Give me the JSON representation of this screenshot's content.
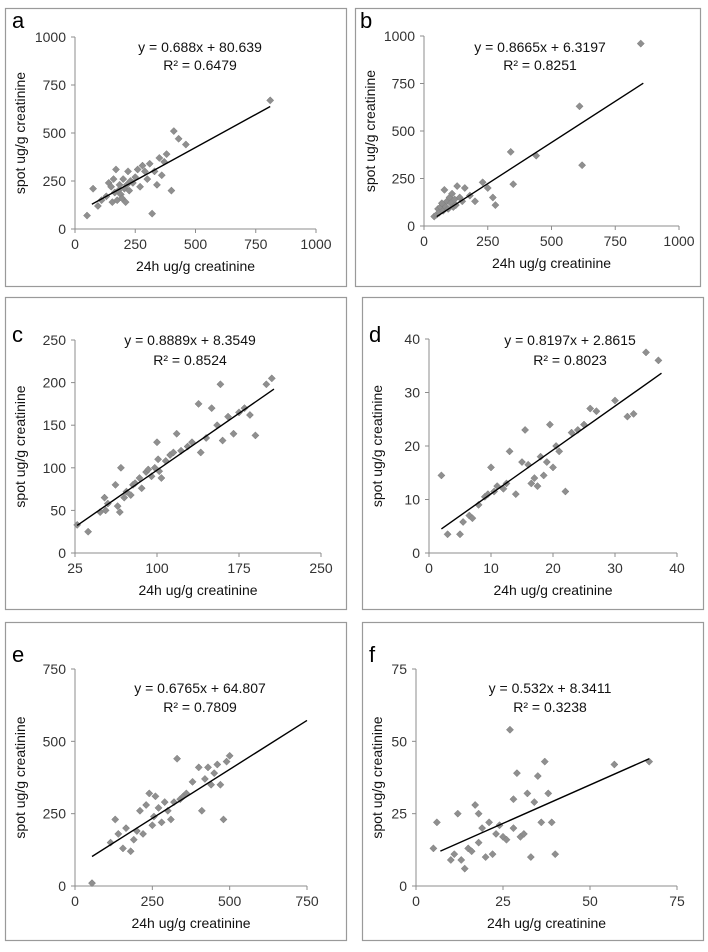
{
  "chart_data": [
    {
      "type": "scatter",
      "panel_label": "a",
      "xlabel": "24h ug/g creatinine",
      "ylabel": "spot ug/g creatinine",
      "xlim": [
        0,
        1000
      ],
      "ylim": [
        0,
        1000
      ],
      "xticks": [
        0,
        250,
        500,
        750,
        1000
      ],
      "yticks": [
        0,
        250,
        500,
        750,
        1000
      ],
      "equation": "y = 0.688x + 80.639",
      "r2": "R² = 0.6479",
      "trendline": {
        "slope": 0.688,
        "intercept": 80.639,
        "x_range": [
          70,
          810
        ]
      },
      "x": [
        50,
        75,
        95,
        110,
        130,
        140,
        150,
        155,
        160,
        165,
        170,
        175,
        180,
        185,
        190,
        195,
        200,
        205,
        210,
        215,
        220,
        225,
        230,
        240,
        250,
        260,
        270,
        280,
        290,
        300,
        310,
        320,
        330,
        340,
        350,
        360,
        370,
        380,
        400,
        410,
        430,
        460,
        810
      ],
      "y": [
        70,
        210,
        120,
        150,
        170,
        240,
        220,
        140,
        260,
        190,
        310,
        150,
        200,
        230,
        180,
        160,
        260,
        210,
        140,
        230,
        300,
        200,
        250,
        240,
        270,
        310,
        220,
        330,
        300,
        260,
        340,
        80,
        300,
        230,
        370,
        280,
        350,
        390,
        200,
        510,
        470,
        440,
        670
      ]
    },
    {
      "type": "scatter",
      "panel_label": "b",
      "xlabel": "24h ug/g creatinine",
      "ylabel": "spot ug/g creatinine",
      "xlim": [
        0,
        1000
      ],
      "ylim": [
        0,
        1000
      ],
      "xticks": [
        0,
        250,
        500,
        750,
        1000
      ],
      "yticks": [
        0,
        250,
        500,
        750,
        1000
      ],
      "equation": "y = 0.8665x + 6.3197",
      "r2": "R² = 0.8251",
      "trendline": {
        "slope": 0.8665,
        "intercept": 6.3197,
        "x_range": [
          50,
          860
        ]
      },
      "x": [
        40,
        50,
        55,
        60,
        65,
        70,
        75,
        80,
        85,
        90,
        95,
        100,
        105,
        110,
        115,
        120,
        125,
        130,
        140,
        150,
        160,
        180,
        200,
        230,
        250,
        270,
        280,
        340,
        350,
        440,
        610,
        620,
        850
      ],
      "y": [
        50,
        60,
        90,
        70,
        100,
        120,
        80,
        190,
        100,
        130,
        90,
        150,
        120,
        170,
        100,
        140,
        110,
        210,
        150,
        130,
        200,
        160,
        130,
        230,
        200,
        150,
        110,
        390,
        220,
        370,
        630,
        320,
        960
      ]
    },
    {
      "type": "scatter",
      "panel_label": "c",
      "xlabel": "24h ug/g creatinine",
      "ylabel": "spot ug/g creatinine",
      "xlim": [
        25,
        250
      ],
      "ylim": [
        0,
        250
      ],
      "xticks": [
        25,
        100,
        175,
        250
      ],
      "yticks": [
        0,
        50,
        100,
        150,
        200,
        250
      ],
      "equation": "y = 0.8889x + 8.3549",
      "r2": "R² = 0.8524",
      "trendline": {
        "slope": 0.8889,
        "intercept": 8.3549,
        "x_range": [
          27,
          207
        ]
      },
      "x": [
        27,
        37,
        48,
        52,
        53,
        55,
        62,
        64,
        66,
        67,
        70,
        72,
        76,
        78,
        80,
        84,
        86,
        90,
        92,
        95,
        98,
        100,
        101,
        102,
        104,
        108,
        112,
        115,
        118,
        122,
        128,
        132,
        138,
        140,
        145,
        150,
        155,
        158,
        160,
        165,
        170,
        175,
        180,
        185,
        190,
        200,
        205
      ],
      "y": [
        33,
        25,
        48,
        65,
        50,
        58,
        80,
        55,
        48,
        100,
        65,
        72,
        68,
        80,
        82,
        88,
        76,
        95,
        98,
        90,
        100,
        130,
        110,
        96,
        88,
        108,
        115,
        118,
        140,
        120,
        125,
        130,
        175,
        118,
        135,
        170,
        150,
        198,
        132,
        160,
        140,
        165,
        170,
        162,
        138,
        198,
        205
      ]
    },
    {
      "type": "scatter",
      "panel_label": "d",
      "xlabel": "24h ug/g creatinine",
      "ylabel": "spot ug/g creatinine",
      "xlim": [
        0,
        40
      ],
      "ylim": [
        0,
        40
      ],
      "xticks": [
        0,
        10,
        20,
        30,
        40
      ],
      "yticks": [
        0,
        10,
        20,
        30,
        40
      ],
      "equation": "y = 0.8197x + 2.8615",
      "r2": "R² = 0.8023",
      "trendline": {
        "slope": 0.8197,
        "intercept": 2.8615,
        "x_range": [
          2,
          37.5
        ]
      },
      "x": [
        2,
        3,
        5,
        5.5,
        6.5,
        7,
        8,
        9,
        9.5,
        10,
        10.5,
        11,
        12,
        12.5,
        13,
        14,
        15,
        15.5,
        16,
        16.5,
        17,
        17.5,
        18,
        18.5,
        19,
        19.5,
        20,
        20.5,
        21,
        22,
        23,
        24,
        25,
        26,
        27,
        30,
        32,
        33,
        35,
        37
      ],
      "y": [
        14.5,
        3.5,
        3.5,
        5.8,
        7,
        6.5,
        9,
        10.5,
        11,
        16,
        11.5,
        12.5,
        12,
        13,
        19,
        11,
        17,
        23,
        16.5,
        13,
        14,
        12.5,
        18,
        14.5,
        17,
        24,
        16,
        20,
        19,
        11.5,
        22.5,
        23,
        24,
        27,
        26.5,
        28.5,
        25.5,
        26,
        37.5,
        36
      ]
    },
    {
      "type": "scatter",
      "panel_label": "e",
      "xlabel": "24h ug/g creatinine",
      "ylabel": "spot ug/g creatinine",
      "xlim": [
        0,
        750
      ],
      "ylim": [
        0,
        750
      ],
      "xticks": [
        0,
        250,
        500,
        750
      ],
      "yticks": [
        0,
        250,
        500,
        750
      ],
      "equation": "y = 0.6765x + 64.807",
      "r2": "R² = 0.7809",
      "trendline": {
        "slope": 0.6765,
        "intercept": 64.807,
        "x_range": [
          55,
          750
        ]
      },
      "x": [
        55,
        115,
        130,
        140,
        155,
        165,
        180,
        190,
        200,
        210,
        220,
        230,
        240,
        250,
        255,
        260,
        270,
        280,
        290,
        300,
        310,
        320,
        330,
        340,
        350,
        360,
        380,
        400,
        410,
        420,
        430,
        440,
        450,
        460,
        470,
        480,
        490,
        500
      ],
      "y": [
        10,
        150,
        230,
        180,
        130,
        200,
        120,
        160,
        190,
        260,
        180,
        280,
        320,
        210,
        240,
        310,
        270,
        220,
        290,
        260,
        230,
        290,
        440,
        300,
        310,
        320,
        360,
        410,
        260,
        370,
        410,
        350,
        390,
        420,
        350,
        230,
        430,
        450
      ]
    },
    {
      "type": "scatter",
      "panel_label": "f",
      "xlabel": "24h ug/g creatinine",
      "ylabel": "spot ug/g creatinine",
      "xlim": [
        0,
        75
      ],
      "ylim": [
        0,
        75
      ],
      "xticks": [
        0,
        25,
        50,
        75
      ],
      "yticks": [
        0,
        25,
        50,
        75
      ],
      "equation": "y = 0.532x + 8.3411",
      "r2": "R² = 0.3238",
      "trendline": {
        "slope": 0.532,
        "intercept": 8.3411,
        "x_range": [
          7,
          67
        ]
      },
      "x": [
        5,
        6,
        10,
        11,
        12,
        13,
        14,
        15,
        16,
        17,
        18,
        18,
        19,
        20,
        21,
        22,
        23,
        24,
        25,
        26,
        27,
        28,
        28,
        29,
        30,
        31,
        32,
        33,
        34,
        35,
        36,
        37,
        38,
        39,
        40,
        57,
        67
      ],
      "y": [
        13,
        22,
        9,
        11,
        25,
        9,
        6,
        13,
        12,
        28,
        15,
        25,
        20,
        10,
        22,
        11,
        18,
        21,
        17,
        16,
        54,
        30,
        20,
        39,
        17,
        18,
        32,
        10,
        29,
        38,
        22,
        43,
        32,
        22,
        11,
        42,
        43
      ]
    }
  ]
}
